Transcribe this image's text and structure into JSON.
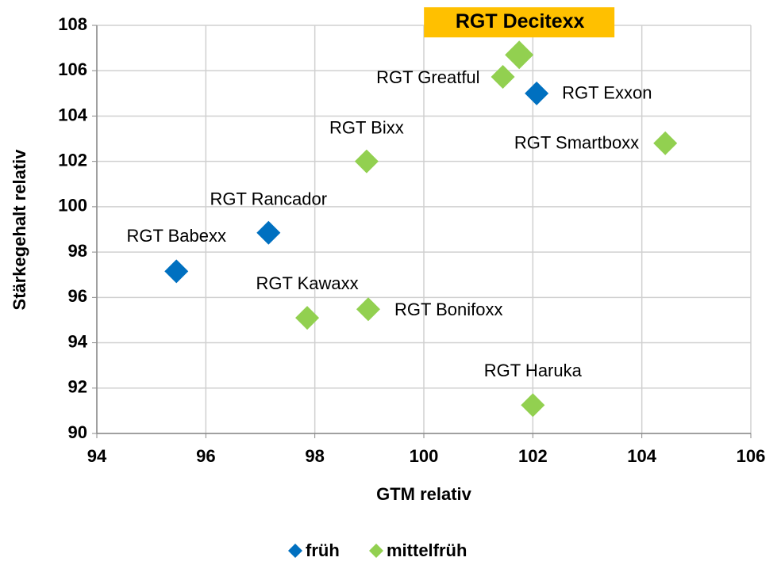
{
  "chart_data": {
    "type": "scatter",
    "xlabel": "GTM relativ",
    "ylabel": "Stärkegehalt relativ",
    "xlim": [
      94,
      106
    ],
    "ylim": [
      90,
      108
    ],
    "xticks": [
      94,
      96,
      98,
      100,
      102,
      104,
      106
    ],
    "yticks": [
      90,
      92,
      94,
      96,
      98,
      100,
      102,
      104,
      106,
      108
    ],
    "grid": true,
    "legend": "bottom",
    "series": [
      {
        "name": "früh",
        "color": "#0070c0",
        "labels": [
          "RGT Exxon",
          "RGT Rancador",
          "RGT Babexx"
        ],
        "x": [
          102.07,
          97.15,
          95.46
        ],
        "values": [
          105.0,
          98.85,
          97.15
        ]
      },
      {
        "name": "mittelfrüh",
        "color": "#92d050",
        "labels": [
          "RGT Decitexx",
          "RGT Greatful",
          "RGT Smartboxx",
          "RGT Bixx",
          "RGT Kawaxx",
          "RGT Bonifoxx",
          "RGT Haruka"
        ],
        "x": [
          101.75,
          101.45,
          104.43,
          98.95,
          97.86,
          98.98,
          102.0
        ],
        "values": [
          106.7,
          105.73,
          102.8,
          102.0,
          95.1,
          95.48,
          91.25
        ]
      }
    ]
  }
}
